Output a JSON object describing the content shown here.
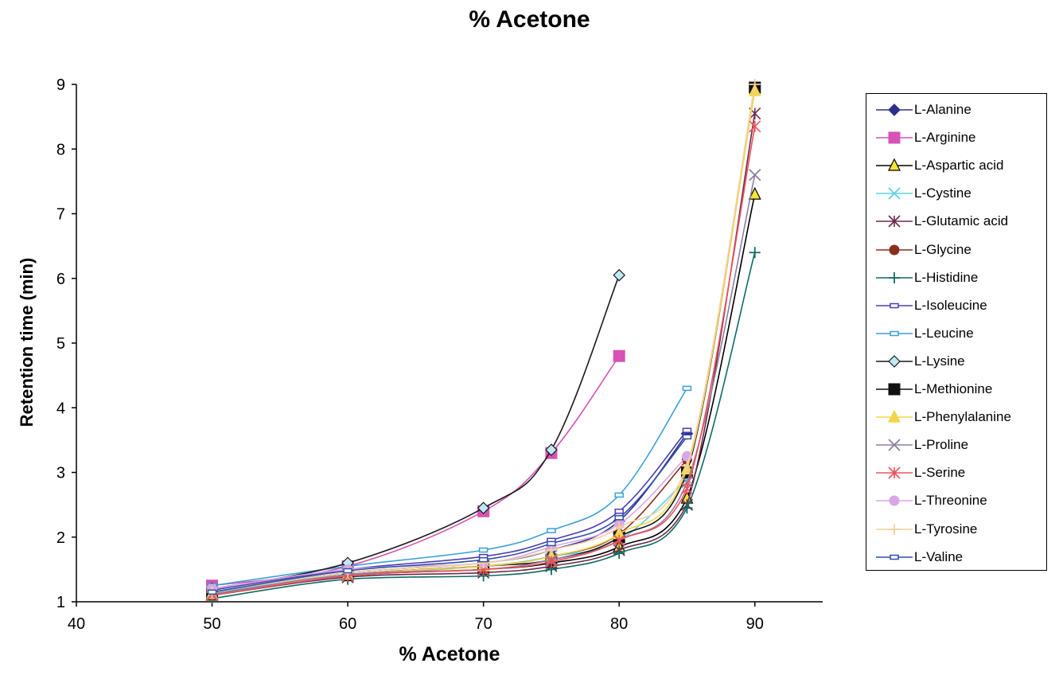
{
  "chart_data": {
    "type": "line",
    "title": "% Acetone",
    "xlabel": "% Acetone",
    "ylabel": "Retention time (min)",
    "xlim": [
      40,
      95
    ],
    "ylim": [
      1,
      9
    ],
    "xticks": [
      40,
      50,
      60,
      70,
      80,
      90
    ],
    "yticks": [
      1,
      2,
      3,
      4,
      5,
      6,
      7,
      8,
      9
    ],
    "grid": false,
    "legend_position": "right",
    "series": [
      {
        "name": "L-Alanine",
        "color": "#2E2E8C",
        "marker": "diamond",
        "x": [
          50,
          60,
          70,
          75,
          80,
          85
        ],
        "y": [
          1.15,
          1.45,
          1.6,
          1.8,
          2.25,
          3.6
        ]
      },
      {
        "name": "L-Arginine",
        "color": "#D653B5",
        "marker": "square",
        "x": [
          50,
          60,
          70,
          75,
          80
        ],
        "y": [
          1.25,
          1.55,
          2.4,
          3.3,
          4.8
        ]
      },
      {
        "name": "L-Aspartic acid",
        "color": "#000000",
        "fill": "#F5E43A",
        "marker": "triangle",
        "x": [
          50,
          60,
          70,
          75,
          80,
          85,
          90
        ],
        "y": [
          1.1,
          1.4,
          1.5,
          1.6,
          1.85,
          2.6,
          7.3
        ]
      },
      {
        "name": "L-Cystine",
        "color": "#5FD0E0",
        "marker": "x",
        "x": [
          50,
          60,
          70,
          75,
          80,
          85
        ],
        "y": [
          1.15,
          1.4,
          1.55,
          1.7,
          1.95,
          2.9
        ]
      },
      {
        "name": "L-Glutamic acid",
        "color": "#6B2A4E",
        "marker": "star",
        "x": [
          50,
          60,
          70,
          75,
          80,
          85,
          90
        ],
        "y": [
          1.1,
          1.38,
          1.45,
          1.55,
          1.8,
          2.5,
          8.55
        ]
      },
      {
        "name": "L-Glycine",
        "color": "#8B2E1E",
        "marker": "circle",
        "x": [
          50,
          60,
          70,
          75,
          80,
          85
        ],
        "y": [
          1.12,
          1.42,
          1.55,
          1.7,
          2.05,
          3.2
        ]
      },
      {
        "name": "L-Histidine",
        "color": "#0E6B63",
        "marker": "plus",
        "x": [
          50,
          60,
          70,
          75,
          80,
          85,
          90
        ],
        "y": [
          1.05,
          1.35,
          1.4,
          1.5,
          1.75,
          2.45,
          6.4
        ]
      },
      {
        "name": "L-Isoleucine",
        "color": "#4C3DB0",
        "marker": "dash",
        "x": [
          50,
          60,
          70,
          75,
          80,
          85
        ],
        "y": [
          1.18,
          1.5,
          1.7,
          1.95,
          2.4,
          3.65
        ]
      },
      {
        "name": "L-Leucine",
        "color": "#3A9FD6",
        "marker": "dash",
        "x": [
          50,
          60,
          70,
          75,
          80,
          85
        ],
        "y": [
          1.25,
          1.55,
          1.8,
          2.1,
          2.65,
          4.3
        ]
      },
      {
        "name": "L-Lysine",
        "color": "#1A1A1A",
        "fill": "#BFE8F2",
        "marker": "diamond",
        "x": [
          50,
          60,
          70,
          75,
          80
        ],
        "y": [
          1.2,
          1.6,
          2.45,
          3.35,
          6.05
        ]
      },
      {
        "name": "L-Methionine",
        "color": "#111111",
        "marker": "square",
        "x": [
          50,
          60,
          70,
          75,
          80,
          85,
          90
        ],
        "y": [
          1.12,
          1.42,
          1.55,
          1.65,
          2.0,
          3.0,
          8.95
        ]
      },
      {
        "name": "L-Phenylalanine",
        "color": "#F2D64A",
        "marker": "triangle",
        "x": [
          50,
          60,
          70,
          75,
          80,
          85,
          90
        ],
        "y": [
          1.12,
          1.42,
          1.55,
          1.7,
          2.05,
          3.05,
          8.9
        ]
      },
      {
        "name": "L-Proline",
        "color": "#8C7FA3",
        "marker": "x",
        "x": [
          50,
          60,
          70,
          75,
          80,
          85,
          90
        ],
        "y": [
          1.12,
          1.42,
          1.5,
          1.65,
          1.95,
          2.85,
          7.6
        ]
      },
      {
        "name": "L-Serine",
        "color": "#F0505A",
        "marker": "star",
        "x": [
          50,
          60,
          70,
          75,
          80,
          85,
          90
        ],
        "y": [
          1.1,
          1.4,
          1.5,
          1.62,
          1.95,
          2.75,
          8.35
        ]
      },
      {
        "name": "L-Threonine",
        "color": "#D9A6E6",
        "marker": "circle",
        "x": [
          50,
          60,
          70,
          75,
          80,
          85
        ],
        "y": [
          1.2,
          1.5,
          1.6,
          1.85,
          2.2,
          3.25
        ]
      },
      {
        "name": "L-Tyrosine",
        "color": "#F2CFA0",
        "marker": "plus",
        "x": [
          50,
          60,
          70,
          75,
          80,
          85,
          90
        ],
        "y": [
          1.15,
          1.45,
          1.6,
          1.8,
          2.15,
          3.1,
          9.0
        ]
      },
      {
        "name": "L-Valine",
        "color": "#2F4FA8",
        "marker": "dash",
        "x": [
          50,
          60,
          70,
          75,
          80,
          85
        ],
        "y": [
          1.15,
          1.48,
          1.65,
          1.9,
          2.3,
          3.55
        ]
      }
    ]
  }
}
